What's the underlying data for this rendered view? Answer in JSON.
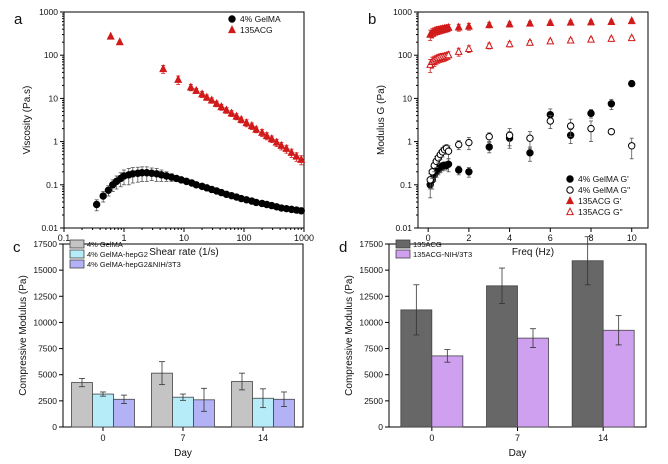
{
  "colors": {
    "black": "#000000",
    "red": "#d11a1a",
    "gray": "#c4c4c4",
    "cyan": "#b5ecf7",
    "lavender": "#b3b2f6",
    "darkgray": "#676767",
    "violet": "#cf9ff0"
  },
  "chart_data": [
    {
      "panel_letter": "a",
      "type": "scatter",
      "xscale": "log",
      "yscale": "log",
      "xlabel": "Shear rate (1/s)",
      "ylabel": "Viscosity (Pa.s)",
      "xlim": [
        0.1,
        1000
      ],
      "ylim": [
        0.01,
        1000
      ],
      "x_ticks": [
        "0.1",
        "1",
        "10",
        "100",
        "1000"
      ],
      "y_ticks": [
        "0.01",
        "0.1",
        "1",
        "10",
        "100",
        "1000"
      ],
      "legend_position": "top-right",
      "series": [
        {
          "name": "4% GelMA",
          "marker": "filled-circle",
          "color": "#000000",
          "x": [
            0.35,
            0.45,
            0.55,
            0.65,
            0.75,
            0.88,
            1.0,
            1.2,
            1.4,
            1.7,
            2.0,
            2.4,
            2.9,
            3.5,
            4.2,
            5.1,
            6.2,
            7.5,
            9,
            11,
            13.5,
            16,
            20,
            24,
            29,
            35,
            42,
            51,
            62,
            75,
            90,
            110,
            135,
            160,
            200,
            240,
            290,
            350,
            420,
            510,
            620,
            750,
            900
          ],
          "y": [
            0.035,
            0.055,
            0.075,
            0.1,
            0.12,
            0.14,
            0.16,
            0.17,
            0.18,
            0.185,
            0.19,
            0.19,
            0.185,
            0.18,
            0.17,
            0.16,
            0.15,
            0.14,
            0.13,
            0.12,
            0.11,
            0.1,
            0.092,
            0.085,
            0.078,
            0.072,
            0.066,
            0.06,
            0.056,
            0.052,
            0.048,
            0.045,
            0.042,
            0.039,
            0.037,
            0.035,
            0.033,
            0.031,
            0.029,
            0.028,
            0.027,
            0.026,
            0.025
          ],
          "err": [
            0.01,
            0.015,
            0.02,
            0.03,
            0.04,
            0.05,
            0.06,
            0.07,
            0.07,
            0.07,
            0.07,
            0.07,
            0.06,
            0.06,
            0.05,
            0.04,
            0.03,
            0.02,
            0.01,
            0,
            0,
            0,
            0,
            0,
            0,
            0,
            0,
            0,
            0,
            0,
            0,
            0,
            0,
            0,
            0,
            0,
            0,
            0,
            0,
            0,
            0,
            0,
            0
          ]
        },
        {
          "name": "135ACG",
          "marker": "filled-triangle",
          "color": "#d11a1a",
          "x": [
            0.6,
            0.85,
            4.5,
            8,
            13,
            16,
            20,
            24,
            29,
            35,
            42,
            51,
            62,
            75,
            90,
            110,
            135,
            160,
            200,
            240,
            290,
            350,
            420,
            510,
            620,
            750,
            900
          ],
          "y": [
            270,
            200,
            48,
            27,
            18,
            15,
            12.5,
            10.5,
            9,
            7.5,
            6.3,
            5.3,
            4.5,
            3.8,
            3.2,
            2.7,
            2.3,
            1.9,
            1.6,
            1.35,
            1.15,
            0.95,
            0.8,
            0.68,
            0.55,
            0.45,
            0.38
          ],
          "err": [
            0,
            0,
            10,
            6,
            3,
            2,
            2,
            1.5,
            1.3,
            1.1,
            1,
            0.8,
            0.7,
            0.6,
            0.5,
            0.5,
            0.4,
            0.3,
            0.3,
            0.25,
            0.2,
            0.18,
            0.16,
            0.14,
            0.12,
            0.1,
            0.09
          ]
        }
      ]
    },
    {
      "panel_letter": "b",
      "type": "scatter",
      "xscale": "linear",
      "yscale": "log",
      "xlabel": "Freq (Hz)",
      "ylabel": "Modulus G (Pa)",
      "xlim": [
        -0.5,
        10.8
      ],
      "ylim": [
        0.01,
        1000
      ],
      "x_ticks": [
        "0",
        "2",
        "4",
        "6",
        "8",
        "10"
      ],
      "y_ticks": [
        "0.01",
        "0.1",
        "1",
        "10",
        "100",
        "1000"
      ],
      "legend_position": "bottom-right",
      "series": [
        {
          "name": "4% GelMA G'",
          "marker": "filled-circle",
          "color": "#000000",
          "x": [
            0.1,
            0.2,
            0.3,
            0.4,
            0.5,
            0.6,
            0.7,
            0.8,
            0.9,
            1,
            1.5,
            2,
            3,
            4,
            5,
            6,
            7,
            8,
            9,
            10
          ],
          "y": [
            0.1,
            0.13,
            0.17,
            0.2,
            0.22,
            0.25,
            0.27,
            0.28,
            0.28,
            0.3,
            0.22,
            0.2,
            0.75,
            1.2,
            0.55,
            4.2,
            1.4,
            4.5,
            7.5,
            22
          ],
          "err": [
            0.05,
            0.05,
            0.05,
            0.05,
            0.05,
            0.06,
            0.06,
            0.06,
            0.06,
            0.1,
            0.05,
            0.05,
            0.2,
            0.5,
            0.2,
            1.5,
            0.5,
            1,
            2,
            0
          ]
        },
        {
          "name": "4% GelMA G\"",
          "marker": "open-circle",
          "color": "#000000",
          "x": [
            0.1,
            0.2,
            0.3,
            0.4,
            0.5,
            0.6,
            0.7,
            0.8,
            0.9,
            1,
            1.5,
            2,
            3,
            4,
            5,
            6,
            7,
            8,
            9,
            10
          ],
          "y": [
            0.13,
            0.2,
            0.28,
            0.35,
            0.42,
            0.5,
            0.58,
            0.65,
            0.7,
            0.6,
            0.85,
            0.95,
            1.3,
            1.4,
            1.2,
            3,
            2.3,
            2,
            1.7,
            0.8
          ],
          "err": [
            0.05,
            0.06,
            0.08,
            0.1,
            0.1,
            0.12,
            0.14,
            0.15,
            0.15,
            0.2,
            0.2,
            0.3,
            0.3,
            0.6,
            0.5,
            1,
            1,
            1,
            0,
            0.4
          ]
        },
        {
          "name": "135ACG G'",
          "marker": "filled-triangle",
          "color": "#d11a1a",
          "x": [
            0.1,
            0.2,
            0.3,
            0.4,
            0.5,
            0.6,
            0.7,
            0.8,
            0.9,
            1,
            1.5,
            2,
            3,
            4,
            5,
            6,
            7,
            8,
            9,
            10
          ],
          "y": [
            300,
            330,
            350,
            370,
            380,
            390,
            400,
            410,
            420,
            430,
            440,
            460,
            500,
            520,
            540,
            560,
            570,
            580,
            590,
            620
          ],
          "err": [
            80,
            80,
            80,
            80,
            80,
            80,
            80,
            80,
            80,
            80,
            80,
            80,
            70,
            70,
            60,
            60,
            60,
            60,
            60,
            60
          ]
        },
        {
          "name": "135ACG G\"",
          "marker": "open-triangle",
          "color": "#d11a1a",
          "x": [
            0.1,
            0.2,
            0.3,
            0.4,
            0.5,
            0.6,
            0.7,
            0.8,
            0.9,
            1,
            1.5,
            2,
            3,
            4,
            5,
            6,
            7,
            8,
            9,
            10
          ],
          "y": [
            60,
            70,
            75,
            80,
            85,
            88,
            90,
            92,
            95,
            100,
            120,
            140,
            165,
            180,
            195,
            210,
            220,
            230,
            240,
            250
          ],
          "err": [
            20,
            20,
            20,
            20,
            20,
            20,
            20,
            20,
            20,
            20,
            25,
            25,
            25,
            25,
            25,
            25,
            25,
            25,
            25,
            25
          ]
        }
      ]
    },
    {
      "panel_letter": "c",
      "type": "bar",
      "xlabel": "Day",
      "ylabel": "Compressive Modulus (Pa)",
      "ylim": [
        0,
        17500
      ],
      "y_ticks": [
        "0",
        "2500",
        "5000",
        "7500",
        "10000",
        "12500",
        "15000",
        "17500"
      ],
      "categories": [
        "0",
        "7",
        "14"
      ],
      "legend_position": "top-left",
      "series": [
        {
          "name": "4% GelMA",
          "color": "#c4c4c4",
          "values": [
            4250,
            5150,
            4350
          ],
          "err": [
            400,
            1100,
            800
          ]
        },
        {
          "name": "4% GelMA-hepG2",
          "color": "#b5ecf7",
          "values": [
            3150,
            2850,
            2750
          ],
          "err": [
            200,
            300,
            900
          ]
        },
        {
          "name": "4% GelMA-hepG2&NIH/3T3",
          "color": "#b3b2f6",
          "values": [
            2650,
            2600,
            2650
          ],
          "err": [
            400,
            1100,
            700
          ]
        }
      ]
    },
    {
      "panel_letter": "d",
      "type": "bar",
      "xlabel": "Day",
      "ylabel": "Compressive Modulus (Pa)",
      "ylim": [
        0,
        17500
      ],
      "y_ticks": [
        "0",
        "2500",
        "5000",
        "7500",
        "10000",
        "12500",
        "15000",
        "17500"
      ],
      "categories": [
        "0",
        "7",
        "14"
      ],
      "legend_position": "top-left",
      "series": [
        {
          "name": "135ACG",
          "color": "#676767",
          "values": [
            11200,
            13500,
            15900
          ],
          "err": [
            2400,
            1700,
            2300
          ]
        },
        {
          "name": "135ACG-NIH/3T3",
          "color": "#cf9ff0",
          "values": [
            6800,
            8500,
            9250
          ],
          "err": [
            600,
            900,
            1400
          ]
        }
      ]
    }
  ]
}
